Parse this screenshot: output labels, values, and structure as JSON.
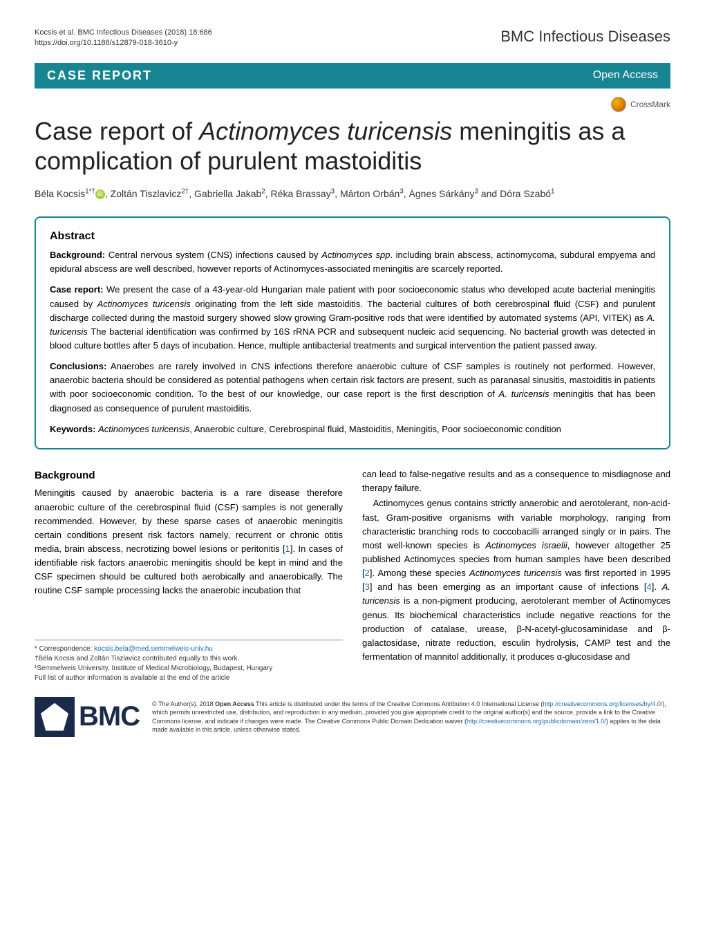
{
  "header": {
    "citation_line1": "Kocsis et al. BMC Infectious Diseases          (2018) 18:686",
    "citation_line2": "https://doi.org/10.1186/s12879-018-3610-y",
    "journal": "BMC Infectious Diseases"
  },
  "banner": {
    "type": "CASE REPORT",
    "access": "Open Access"
  },
  "crossmark_label": "CrossMark",
  "title_html": "Case report of <em>Actinomyces turicensis</em> meningitis as a complication of purulent mastoiditis",
  "authors_html": "Béla Kocsis<sup>1*†</sup><span class='orcid' data-name='orcid-icon' data-interactable='false'></span>, Zoltán Tiszlavicz<sup>2†</sup>, Gabriella Jakab<sup>2</sup>, Réka Brassay<sup>3</sup>, Márton Orbán<sup>3</sup>, Ágnes Sárkány<sup>3</sup> and Dóra Szabó<sup>1</sup>",
  "abstract": {
    "heading": "Abstract",
    "background_label": "Background:",
    "background_text": " Central nervous system (CNS) infections caused by <em>Actinomyces spp</em>. including brain abscess, actinomycoma, subdural empyema and epidural abscess are well described, however reports of Actinomyces-associated meningitis are scarcely reported.",
    "case_label": "Case report:",
    "case_text": " We present the case of a 43-year-old Hungarian male patient with poor socioeconomic status who developed acute bacterial meningitis caused by <em>Actinomyces turicensis</em> originating from the left side mastoiditis. The bacterial cultures of both cerebrospinal fluid (CSF) and purulent discharge collected during the mastoid surgery showed slow growing Gram-positive rods that were identified by automated systems (API, VITEK) as <em>A. turicensis</em> The bacterial identification was confirmed by 16S rRNA PCR and subsequent nucleic acid sequencing. No bacterial growth was detected in blood culture bottles after 5 days of incubation. Hence, multiple antibacterial treatments and surgical intervention the patient passed away.",
    "conclusions_label": "Conclusions:",
    "conclusions_text": " Anaerobes are rarely involved in CNS infections therefore anaerobic culture of CSF samples is routinely not performed. However, anaerobic bacteria should be considered as potential pathogens when certain risk factors are present, such as paranasal sinusitis, mastoiditis in patients with poor socioeconomic condition. To the best of our knowledge, our case report is the first description of <em>A. turicensis</em> meningitis that has been diagnosed as consequence of purulent mastoiditis.",
    "keywords_label": "Keywords:",
    "keywords_text": " <em>Actinomyces turicensis</em>, Anaerobic culture, Cerebrospinal fluid, Mastoiditis, Meningitis, Poor socioeconomic condition"
  },
  "body": {
    "background_heading": "Background",
    "col1_html": "Meningitis caused by anaerobic bacteria is a rare disease therefore anaerobic culture of the cerebrospinal fluid (CSF) samples is not generally recommended. However, by these sparse cases of anaerobic meningitis certain conditions present risk factors namely, recurrent or chronic otitis media, brain abscess, necrotizing bowel lesions or peritonitis [<span class='ref'>1</span>]. In cases of identifiable risk factors anaerobic meningitis should be kept in mind and the CSF specimen should be cultured both aerobically and anaerobically. The routine CSF sample processing lacks the anaerobic incubation that",
    "col2_p1_html": "can lead to false-negative results and as a consequence to misdiagnose and therapy failure.",
    "col2_p2_html": "Actinomyces genus contains strictly anaerobic and aerotolerant, non-acid-fast, Gram-positive organisms with variable morphology, ranging from characteristic branching rods to coccobacilli arranged singly or in pairs. The most well-known species is <em>Actinomyces israelii</em>, however altogether 25 published Actinomyces species from human samples have been described [<span class='ref'>2</span>]. Among these species <em>Actinomyces turicensis</em> was first reported in 1995 [<span class='ref'>3</span>] and has been emerging as an important cause of infections [<span class='ref'>4</span>]. <em>A. turicensis</em> is a non-pigment producing, aerotolerant member of Actinomyces genus. Its biochemical characteristics include negative reactions for the production of catalase, urease, β-N-acetyl-glucosaminidase and β-galactosidase, nitrate reduction, esculin hydrolysis, CAMP test and the fermentation of mannitol additionally, it produces α-glucosidase and"
  },
  "footnotes": {
    "correspondence_label": "* Correspondence: ",
    "email": "kocsis.bela@med.semmelweis-univ.hu",
    "equal": "†Béla Kocsis and Zoltán Tiszlavicz contributed equally to this work.",
    "affil": "¹Semmelweis University, Institute of Medical Microbiology, Budapest, Hungary",
    "full_list": "Full list of author information is available at the end of the article"
  },
  "footer": {
    "bmc_text": "BMC",
    "license_html": "© The Author(s). 2018 <strong>Open Access</strong> This article is distributed under the terms of the Creative Commons Attribution 4.0 International License (<span class='link'>http://creativecommons.org/licenses/by/4.0/</span>), which permits unrestricted use, distribution, and reproduction in any medium, provided you give appropriate credit to the original author(s) and the source, provide a link to the Creative Commons license, and indicate if changes were made. The Creative Commons Public Domain Dedication waiver (<span class='link'>http://creativecommons.org/publicdomain/zero/1.0/</span>) applies to the data made available in this article, unless otherwise stated."
  },
  "colors": {
    "teal": "#178591",
    "link": "#1a6db5",
    "bmc_navy": "#1a2a4a"
  }
}
